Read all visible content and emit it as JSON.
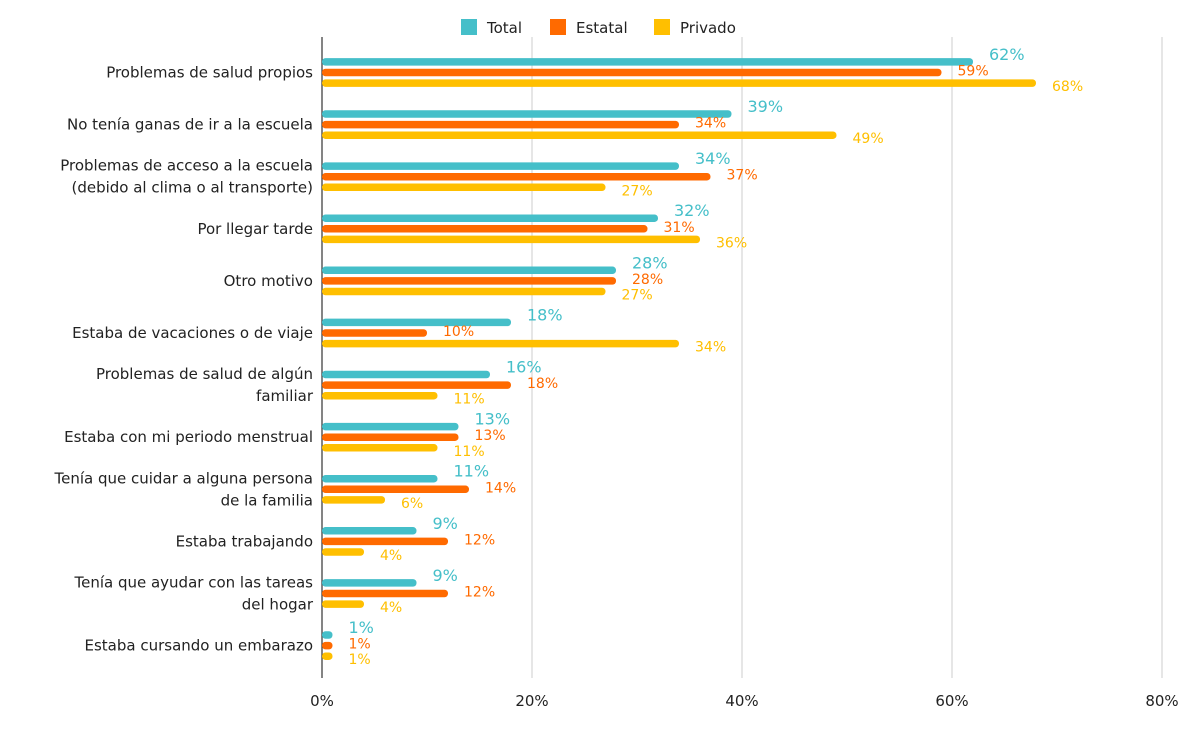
{
  "chart_data": {
    "type": "bar",
    "orientation": "horizontal",
    "categories": [
      [
        "Problemas de salud propios"
      ],
      [
        "No tenía ganas de ir a la escuela"
      ],
      [
        "Problemas de acceso a la escuela",
        "(debido al clima o al transporte)"
      ],
      [
        "Por llegar tarde"
      ],
      [
        "Otro motivo"
      ],
      [
        "Estaba de vacaciones o de viaje"
      ],
      [
        "Problemas de salud de algún",
        "familiar"
      ],
      [
        "Estaba con mi periodo menstrual"
      ],
      [
        "Tenía que cuidar a alguna persona",
        "de la familia"
      ],
      [
        "Estaba trabajando"
      ],
      [
        "Tenía que ayudar con las tareas",
        "del hogar"
      ],
      [
        "Estaba cursando un embarazo"
      ]
    ],
    "series": [
      {
        "name": "Total",
        "color": "#45BFC9",
        "values": [
          62,
          39,
          34,
          32,
          28,
          18,
          16,
          13,
          11,
          9,
          9,
          1
        ],
        "labels": [
          "62%",
          "39%",
          "34%",
          "32%",
          "28%",
          "18%",
          "16%",
          "13%",
          "11%",
          "9%",
          "9%",
          "1%"
        ]
      },
      {
        "name": "Estatal",
        "color": "#FF6A00",
        "values": [
          59,
          34,
          37,
          31,
          28,
          10,
          18,
          13,
          14,
          12,
          12,
          1
        ],
        "labels": [
          "59%",
          "34%",
          "37%",
          "31%",
          "28%",
          "10%",
          "18%",
          "13%",
          "14%",
          "12%",
          "12%",
          "1%"
        ]
      },
      {
        "name": "Privado",
        "color": "#FFBF00",
        "values": [
          68,
          49,
          27,
          36,
          27,
          34,
          11,
          11,
          6,
          4,
          4,
          1
        ],
        "labels": [
          "68%",
          "49%",
          "27%",
          "36%",
          "27%",
          "34%",
          "11%",
          "11%",
          "6%",
          "4%",
          "4%",
          "1%"
        ]
      }
    ],
    "xlim": [
      0,
      80
    ],
    "xticks": [
      0,
      20,
      40,
      60,
      80
    ],
    "xtick_labels": [
      "0%",
      "20%",
      "40%",
      "60%",
      "80%"
    ],
    "grid": true,
    "legend_position": "top-center",
    "title": "",
    "xlabel": "",
    "ylabel": ""
  }
}
